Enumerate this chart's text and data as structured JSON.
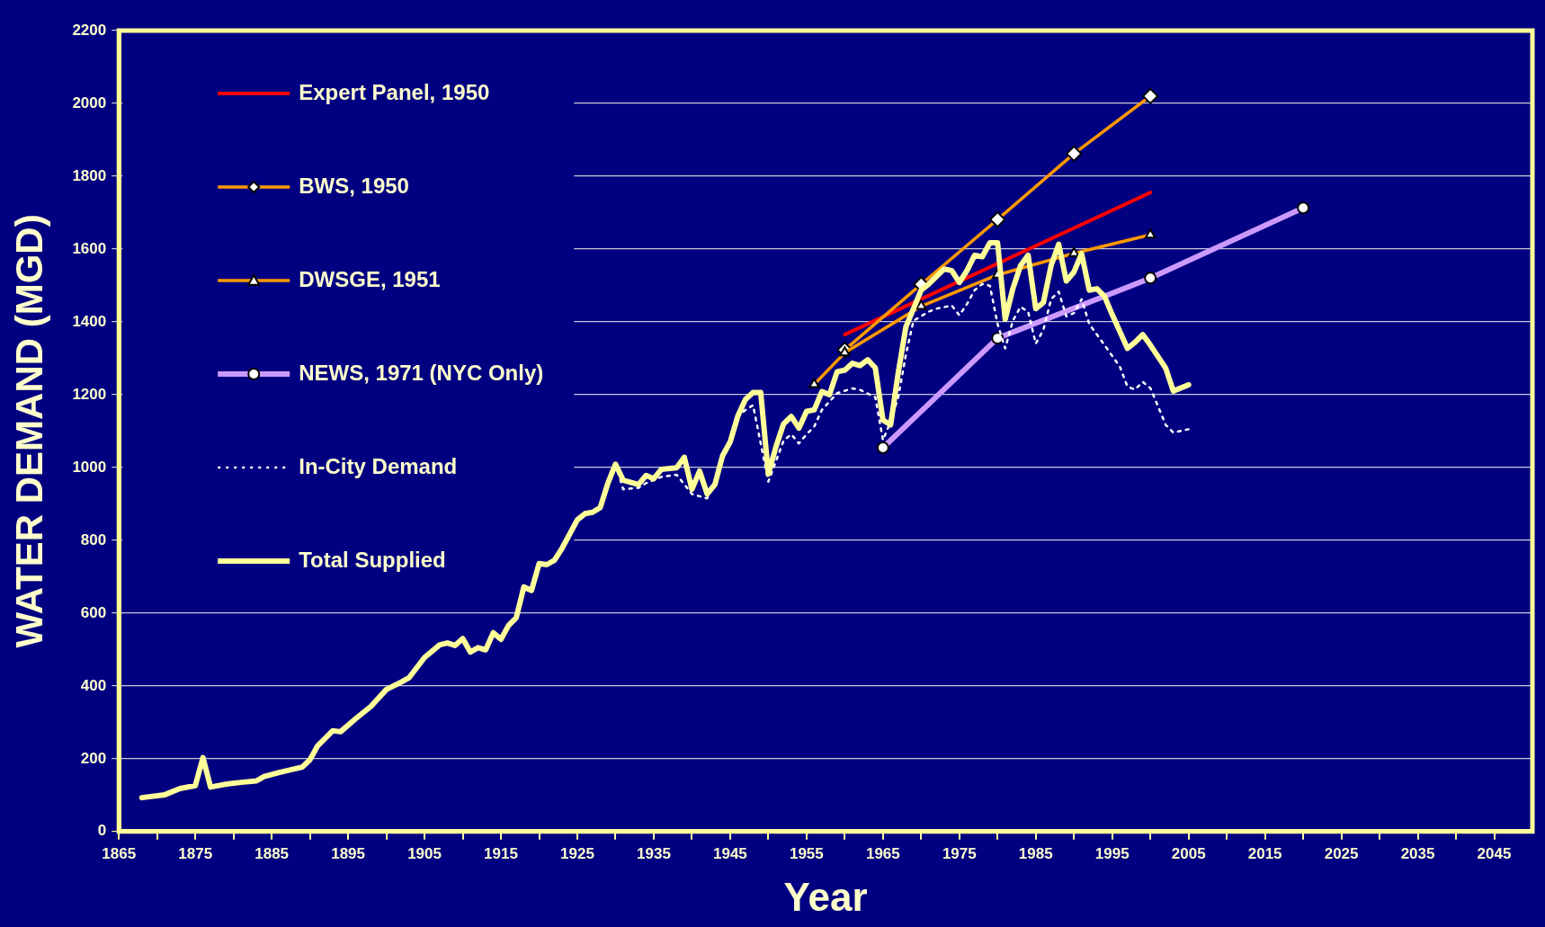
{
  "chart_data": {
    "type": "line",
    "xlabel": "Year",
    "ylabel": "WATER DEMAND (MGD)",
    "xlim": [
      1865,
      2050
    ],
    "xticks": [
      1865,
      {
        "value": 1870,
        "label": null
      },
      1875,
      {
        "value": 1880,
        "label": null
      },
      1885,
      {
        "value": 1890,
        "label": null
      },
      1895,
      {
        "value": 1900,
        "label": null
      },
      1905,
      {
        "value": 1910,
        "label": null
      },
      1915,
      {
        "value": 1920,
        "label": null
      },
      1925,
      {
        "value": 1930,
        "label": null
      },
      1935,
      {
        "value": 1940,
        "label": null
      },
      1945,
      {
        "value": 1950,
        "label": null
      },
      1955,
      {
        "value": 1960,
        "label": null
      },
      1965,
      {
        "value": 1970,
        "label": null
      },
      1975,
      {
        "value": 1980,
        "label": null
      },
      1985,
      {
        "value": 1990,
        "label": null
      },
      1995,
      {
        "value": 2000,
        "label": null
      },
      2005,
      {
        "value": 2010,
        "label": null
      },
      2015,
      {
        "value": 2020,
        "label": null
      },
      2025,
      {
        "value": 2030,
        "label": null
      },
      2035,
      {
        "value": 2040,
        "label": null
      },
      2045
    ],
    "ylim": [
      0,
      2200
    ],
    "yticks": [
      0,
      200,
      400,
      600,
      800,
      1000,
      1200,
      1400,
      1600,
      1800,
      2000,
      2200
    ],
    "grid": "y",
    "legend": "top left",
    "series": [
      {
        "name": "Expert Panel, 1950",
        "color": "#ff0000",
        "marker": "none",
        "x": [
          1960,
          2000
        ],
        "values": [
          1365,
          1755
        ]
      },
      {
        "name": "BWS, 1950",
        "color": "#ff9900",
        "marker": "diamond",
        "x": [
          1960,
          1970,
          1980,
          1990,
          2000
        ],
        "values": [
          1323,
          1503,
          1681,
          1862,
          2020
        ]
      },
      {
        "name": "DWSGE, 1951",
        "color": "#ff9900",
        "marker": "triangle",
        "x": [
          1956,
          1960,
          1970,
          1980,
          1990,
          2000
        ],
        "values": [
          1228,
          1315,
          1443,
          1529,
          1588,
          1639
        ]
      },
      {
        "name": "NEWS, 1971 (NYC Only)",
        "color": "#cc99ff",
        "marker": "circle",
        "x": [
          1965,
          1980,
          2000,
          2020
        ],
        "values": [
          1054,
          1355,
          1520,
          1713
        ]
      },
      {
        "name": "In-City Demand",
        "color": "#ffffff",
        "marker": "none",
        "line_style": "dotted",
        "x": [
          1930,
          1931,
          1933,
          1934,
          1936,
          1938,
          1940,
          1942,
          1943,
          1944,
          1945,
          1946,
          1947,
          1948,
          1950,
          1952,
          1953,
          1954,
          1955,
          1956,
          1957,
          1959,
          1961,
          1962,
          1964,
          1965,
          1966,
          1967,
          1968,
          1969,
          1971,
          1972,
          1974,
          1975,
          1976,
          1977,
          1978,
          1979,
          1980,
          1981,
          1982,
          1983,
          1984,
          1985,
          1986,
          1987,
          1988,
          1989,
          1990,
          1991,
          1992,
          1993,
          1994,
          1996,
          1997,
          1998,
          1999,
          2000,
          2001,
          2002,
          2003,
          2005
        ],
        "values": [
          1009,
          940,
          944,
          957,
          974,
          980,
          927,
          915,
          957,
          1032,
          1070,
          1141,
          1158,
          1171,
          961,
          1074,
          1091,
          1066,
          1091,
          1112,
          1158,
          1204,
          1217,
          1213,
          1193,
          1075,
          1126,
          1193,
          1310,
          1403,
          1428,
          1436,
          1445,
          1418,
          1449,
          1487,
          1504,
          1499,
          1394,
          1327,
          1403,
          1441,
          1428,
          1340,
          1378,
          1462,
          1483,
          1415,
          1424,
          1462,
          1394,
          1365,
          1336,
          1277,
          1222,
          1214,
          1235,
          1218,
          1168,
          1117,
          1096,
          1105
        ]
      },
      {
        "name": "Total Supplied",
        "color": "#ffff99",
        "marker": "none",
        "x": [
          1868,
          1871,
          1873,
          1875,
          1876,
          1877,
          1879,
          1881,
          1883,
          1884,
          1886,
          1888,
          1889,
          1890,
          1891,
          1893,
          1894,
          1896,
          1898,
          1900,
          1902,
          1903,
          1905,
          1907,
          1908,
          1909,
          1910,
          1911,
          1912,
          1913,
          1914,
          1915,
          1916,
          1917,
          1918,
          1919,
          1920,
          1921,
          1922,
          1923,
          1925,
          1926,
          1927,
          1928,
          1929,
          1930,
          1931,
          1933,
          1934,
          1935,
          1936,
          1938,
          1939,
          1940,
          1941,
          1942,
          1943,
          1944,
          1945,
          1946,
          1947,
          1948,
          1949,
          1950,
          1951,
          1952,
          1953,
          1954,
          1955,
          1956,
          1957,
          1958,
          1959,
          1960,
          1961,
          1962,
          1963,
          1964,
          1965,
          1966,
          1967,
          1968,
          1970,
          1971,
          1973,
          1974,
          1975,
          1976,
          1977,
          1978,
          1979,
          1980,
          1981,
          1982,
          1983,
          1984,
          1985,
          1986,
          1987,
          1988,
          1989,
          1990,
          1991,
          1992,
          1993,
          1994,
          1995,
          1997,
          1998,
          1999,
          2000,
          2002,
          2003,
          2005
        ],
        "values": [
          93,
          101,
          118,
          126,
          203,
          122,
          130,
          135,
          139,
          151,
          162,
          172,
          177,
          197,
          235,
          277,
          274,
          310,
          344,
          390,
          411,
          423,
          478,
          513,
          518,
          511,
          530,
          493,
          505,
          499,
          546,
          528,
          566,
          587,
          672,
          662,
          736,
          733,
          745,
          778,
          856,
          873,
          877,
          890,
          957,
          1009,
          965,
          953,
          978,
          969,
          995,
          999,
          1028,
          940,
          990,
          927,
          953,
          1032,
          1070,
          1141,
          1187,
          1206,
          1206,
          982,
          1057,
          1120,
          1140,
          1108,
          1154,
          1158,
          1208,
          1200,
          1263,
          1267,
          1286,
          1280,
          1296,
          1273,
          1130,
          1117,
          1260,
          1386,
          1487,
          1504,
          1545,
          1541,
          1508,
          1541,
          1583,
          1579,
          1617,
          1617,
          1407,
          1491,
          1554,
          1583,
          1436,
          1453,
          1554,
          1613,
          1512,
          1537,
          1587,
          1487,
          1491,
          1470,
          1420,
          1327,
          1344,
          1365,
          1336,
          1273,
          1210,
          1227
        ]
      }
    ]
  }
}
